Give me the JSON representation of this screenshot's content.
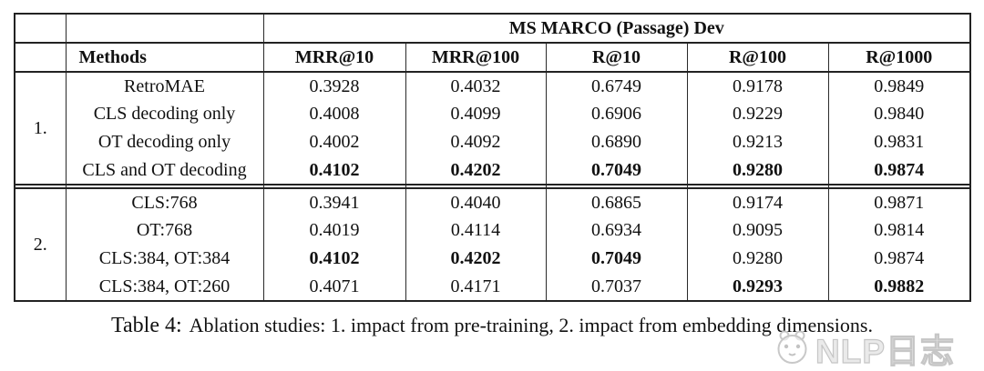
{
  "table": {
    "span_header": "MS MARCO (Passage) Dev",
    "methods_header": "Methods",
    "metric_headers": [
      "MRR@10",
      "MRR@100",
      "R@10",
      "R@100",
      "R@1000"
    ],
    "groups": [
      {
        "label": "1.",
        "rows": [
          {
            "method": "RetroMAE",
            "values": [
              "0.3928",
              "0.4032",
              "0.6749",
              "0.9178",
              "0.9849"
            ],
            "bold": [
              false,
              false,
              false,
              false,
              false
            ]
          },
          {
            "method": "CLS decoding only",
            "values": [
              "0.4008",
              "0.4099",
              "0.6906",
              "0.9229",
              "0.9840"
            ],
            "bold": [
              false,
              false,
              false,
              false,
              false
            ]
          },
          {
            "method": "OT decoding only",
            "values": [
              "0.4002",
              "0.4092",
              "0.6890",
              "0.9213",
              "0.9831"
            ],
            "bold": [
              false,
              false,
              false,
              false,
              false
            ]
          },
          {
            "method": "CLS and OT decoding",
            "values": [
              "0.4102",
              "0.4202",
              "0.7049",
              "0.9280",
              "0.9874"
            ],
            "bold": [
              true,
              true,
              true,
              true,
              true
            ]
          }
        ]
      },
      {
        "label": "2.",
        "rows": [
          {
            "method": "CLS:768",
            "values": [
              "0.3941",
              "0.4040",
              "0.6865",
              "0.9174",
              "0.9871"
            ],
            "bold": [
              false,
              false,
              false,
              false,
              false
            ]
          },
          {
            "method": "OT:768",
            "values": [
              "0.4019",
              "0.4114",
              "0.6934",
              "0.9095",
              "0.9814"
            ],
            "bold": [
              false,
              false,
              false,
              false,
              false
            ]
          },
          {
            "method": "CLS:384, OT:384",
            "values": [
              "0.4102",
              "0.4202",
              "0.7049",
              "0.9280",
              "0.9874"
            ],
            "bold": [
              true,
              true,
              true,
              false,
              false
            ]
          },
          {
            "method": "CLS:384, OT:260",
            "values": [
              "0.4071",
              "0.4171",
              "0.7037",
              "0.9293",
              "0.9882"
            ],
            "bold": [
              false,
              false,
              false,
              true,
              true
            ]
          }
        ]
      }
    ]
  },
  "caption": {
    "label": "Table 4:",
    "text": "Ablation studies: 1. impact from pre-training, 2. impact from embedding dimensions."
  },
  "watermark": {
    "text": "NLP日志"
  }
}
